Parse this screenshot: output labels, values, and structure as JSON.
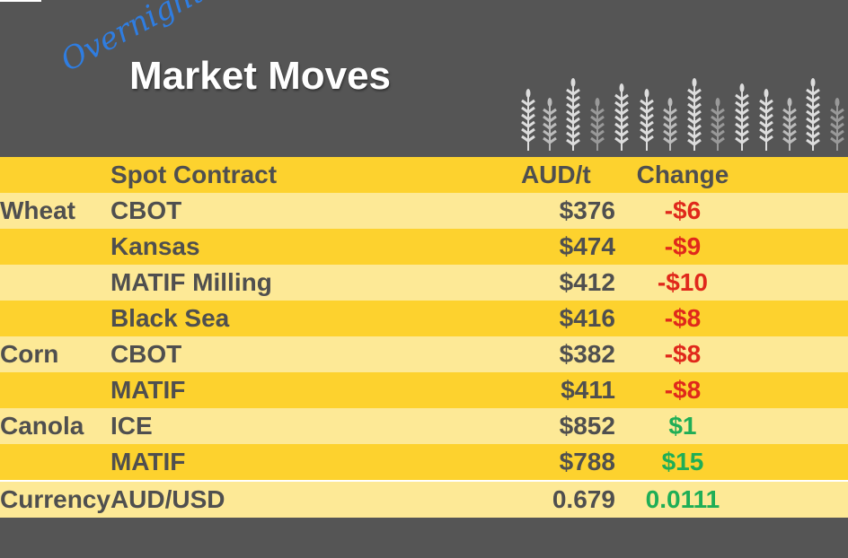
{
  "header": {
    "overnight": "Overnight",
    "title": "Market Moves",
    "decoration": "wheat-icon"
  },
  "table": {
    "columns": [
      "",
      "Spot Contract",
      "AUD/t",
      "Change"
    ],
    "rows": [
      {
        "commodity": "Wheat",
        "contract": "CBOT",
        "price": "$376",
        "change": "-$6",
        "direction": "down"
      },
      {
        "commodity": "",
        "contract": "Kansas",
        "price": "$474",
        "change": "-$9",
        "direction": "down"
      },
      {
        "commodity": "",
        "contract": "MATIF Milling",
        "price": "$412",
        "change": "-$10",
        "direction": "down"
      },
      {
        "commodity": "",
        "contract": "Black Sea",
        "price": "$416",
        "change": "-$8",
        "direction": "down"
      },
      {
        "commodity": "Corn",
        "contract": "CBOT",
        "price": "$382",
        "change": "-$8",
        "direction": "down"
      },
      {
        "commodity": "",
        "contract": "MATIF",
        "price": "$411",
        "change": "-$8",
        "direction": "down"
      },
      {
        "commodity": "Canola",
        "contract": "ICE",
        "price": "$852",
        "change": "$1",
        "direction": "up"
      },
      {
        "commodity": "",
        "contract": "MATIF",
        "price": "$788",
        "change": "$15",
        "direction": "up"
      },
      {
        "commodity": "Currency",
        "contract": "AUD/USD",
        "price": "0.679",
        "change": "0.0111",
        "direction": "up"
      }
    ]
  },
  "colors": {
    "background": "#555555",
    "header_row": "#fdd22e",
    "light_row": "#fde996",
    "negative": "#e0281b",
    "positive": "#1fae56",
    "overnight": "#2f7de1"
  }
}
